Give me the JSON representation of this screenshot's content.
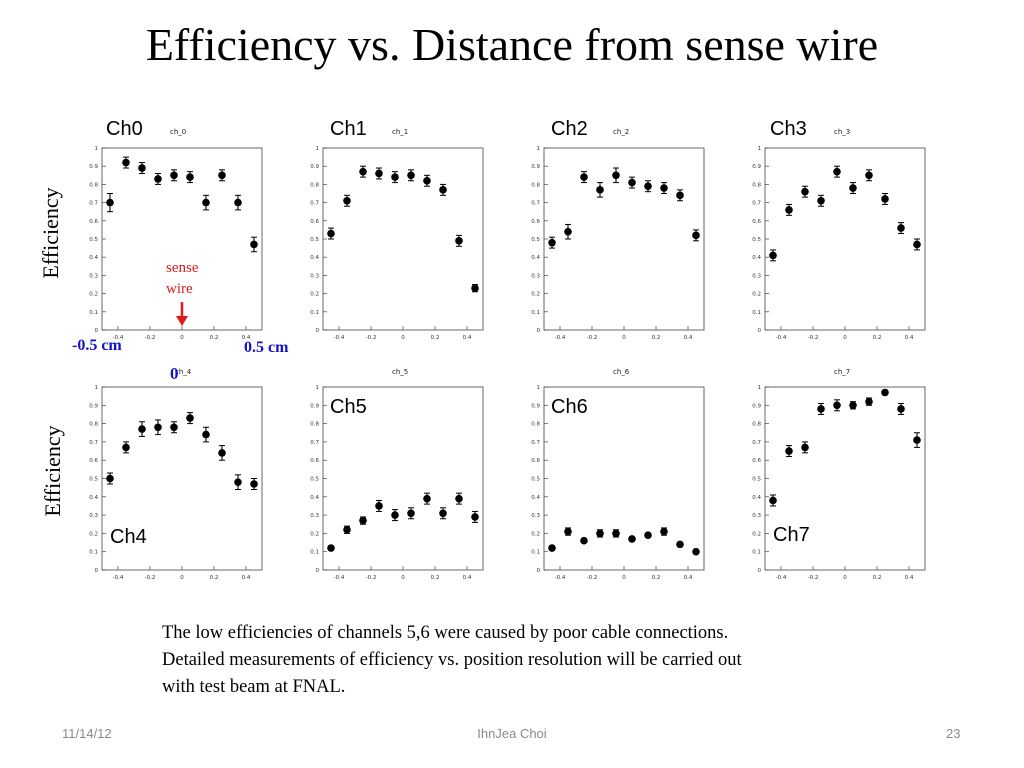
{
  "slide": {
    "title": "Efficiency vs. Distance from sense wire",
    "ylabel": "Efficiency",
    "annotations": {
      "sense_wire_line1": "sense",
      "sense_wire_line2": "wire",
      "left_mark": "-0.5 cm",
      "right_mark": "0.5 cm",
      "zero_mark": "0"
    },
    "paragraph": [
      "The low efficiencies of channels 5,6 were caused by poor cable connections.",
      "Detailed measurements of efficiency vs. position resolution will be carried out",
      "with test beam at FNAL."
    ],
    "footer": {
      "date": "11/14/12",
      "author": "IhnJea Choi",
      "page": "23"
    },
    "colors": {
      "arrow": "#e0191a",
      "marks": "#1212c8",
      "points": "#000000"
    }
  },
  "chart_data": [
    {
      "type": "scatter",
      "label": "Ch0",
      "hist_name": "ch_0",
      "xlim": [
        -0.5,
        0.5
      ],
      "ylim": [
        0,
        1
      ],
      "x": [
        -0.45,
        -0.35,
        -0.25,
        -0.15,
        -0.05,
        0.05,
        0.15,
        0.25,
        0.35,
        0.45
      ],
      "values": [
        0.7,
        0.92,
        0.89,
        0.83,
        0.85,
        0.84,
        0.7,
        0.85,
        0.7,
        0.47
      ],
      "errors": [
        0.05,
        0.03,
        0.03,
        0.03,
        0.03,
        0.03,
        0.04,
        0.03,
        0.04,
        0.04
      ]
    },
    {
      "type": "scatter",
      "label": "Ch1",
      "hist_name": "ch_1",
      "xlim": [
        -0.5,
        0.5
      ],
      "ylim": [
        0,
        1
      ],
      "x": [
        -0.45,
        -0.35,
        -0.25,
        -0.15,
        -0.05,
        0.05,
        0.15,
        0.25,
        0.35,
        0.45
      ],
      "values": [
        0.53,
        0.71,
        0.87,
        0.86,
        0.84,
        0.85,
        0.82,
        0.77,
        0.49,
        0.23
      ],
      "errors": [
        0.03,
        0.03,
        0.03,
        0.03,
        0.03,
        0.03,
        0.03,
        0.03,
        0.03,
        0.02
      ]
    },
    {
      "type": "scatter",
      "label": "Ch2",
      "hist_name": "ch_2",
      "xlim": [
        -0.5,
        0.5
      ],
      "ylim": [
        0,
        1
      ],
      "x": [
        -0.45,
        -0.35,
        -0.25,
        -0.15,
        -0.05,
        0.05,
        0.15,
        0.25,
        0.35,
        0.45
      ],
      "values": [
        0.48,
        0.54,
        0.84,
        0.77,
        0.85,
        0.81,
        0.79,
        0.78,
        0.74,
        0.52
      ],
      "errors": [
        0.03,
        0.04,
        0.03,
        0.04,
        0.04,
        0.03,
        0.03,
        0.03,
        0.03,
        0.03
      ]
    },
    {
      "type": "scatter",
      "label": "Ch3",
      "hist_name": "ch_3",
      "xlim": [
        -0.5,
        0.5
      ],
      "ylim": [
        0,
        1
      ],
      "x": [
        -0.45,
        -0.35,
        -0.25,
        -0.15,
        -0.05,
        0.05,
        0.15,
        0.25,
        0.35,
        0.45
      ],
      "values": [
        0.41,
        0.66,
        0.76,
        0.71,
        0.87,
        0.78,
        0.85,
        0.72,
        0.56,
        0.47
      ],
      "errors": [
        0.03,
        0.03,
        0.03,
        0.03,
        0.03,
        0.03,
        0.03,
        0.03,
        0.03,
        0.03
      ]
    },
    {
      "type": "scatter",
      "label": "Ch4",
      "hist_name": "ch_4",
      "xlim": [
        -0.5,
        0.5
      ],
      "ylim": [
        0,
        1
      ],
      "x": [
        -0.45,
        -0.35,
        -0.25,
        -0.15,
        -0.05,
        0.05,
        0.15,
        0.25,
        0.35,
        0.45
      ],
      "values": [
        0.5,
        0.67,
        0.77,
        0.78,
        0.78,
        0.83,
        0.74,
        0.64,
        0.48,
        0.47
      ],
      "errors": [
        0.03,
        0.03,
        0.04,
        0.04,
        0.03,
        0.03,
        0.04,
        0.04,
        0.04,
        0.03
      ]
    },
    {
      "type": "scatter",
      "label": "Ch5",
      "hist_name": "ch_5",
      "xlim": [
        -0.5,
        0.5
      ],
      "ylim": [
        0,
        1
      ],
      "x": [
        -0.45,
        -0.35,
        -0.25,
        -0.15,
        -0.05,
        0.05,
        0.15,
        0.25,
        0.35,
        0.45
      ],
      "values": [
        0.12,
        0.22,
        0.27,
        0.35,
        0.3,
        0.31,
        0.39,
        0.31,
        0.39,
        0.29
      ],
      "errors": [
        0.01,
        0.02,
        0.02,
        0.03,
        0.03,
        0.03,
        0.03,
        0.03,
        0.03,
        0.03
      ]
    },
    {
      "type": "scatter",
      "label": "Ch6",
      "hist_name": "ch_6",
      "xlim": [
        -0.5,
        0.5
      ],
      "ylim": [
        0,
        1
      ],
      "x": [
        -0.45,
        -0.35,
        -0.25,
        -0.15,
        -0.05,
        0.05,
        0.15,
        0.25,
        0.35,
        0.45
      ],
      "values": [
        0.12,
        0.21,
        0.16,
        0.2,
        0.2,
        0.17,
        0.19,
        0.21,
        0.14,
        0.1
      ],
      "errors": [
        0.01,
        0.02,
        0.01,
        0.02,
        0.02,
        0.01,
        0.01,
        0.02,
        0.01,
        0.01
      ]
    },
    {
      "type": "scatter",
      "label": "Ch7",
      "hist_name": "ch_7",
      "xlim": [
        -0.5,
        0.5
      ],
      "ylim": [
        0,
        1
      ],
      "x": [
        -0.45,
        -0.35,
        -0.25,
        -0.15,
        -0.05,
        0.05,
        0.15,
        0.25,
        0.35,
        0.45
      ],
      "values": [
        0.38,
        0.65,
        0.67,
        0.88,
        0.9,
        0.9,
        0.92,
        0.97,
        0.88,
        0.71
      ],
      "errors": [
        0.03,
        0.03,
        0.03,
        0.03,
        0.03,
        0.02,
        0.02,
        0.01,
        0.03,
        0.04
      ]
    }
  ]
}
